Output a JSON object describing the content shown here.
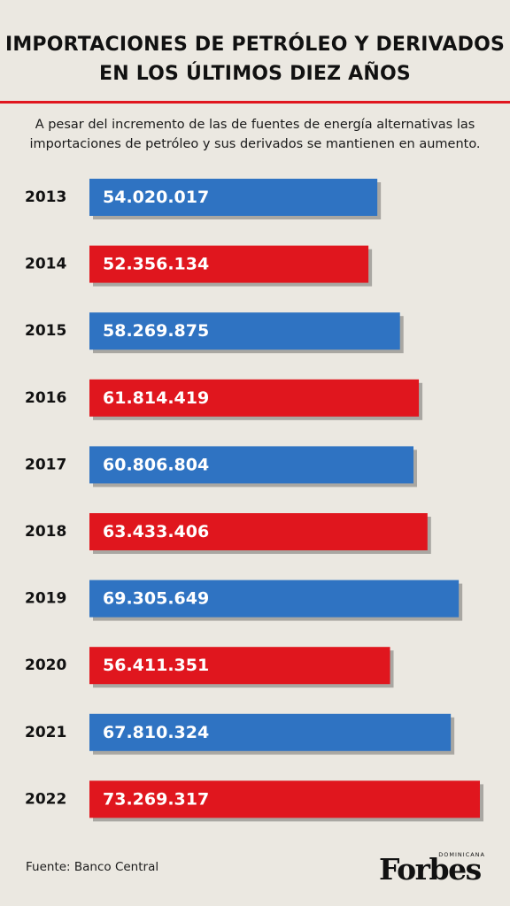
{
  "title": "IMPORTACIONES DE PETRÓLEO Y DERIVADOS EN LOS ÚLTIMOS DIEZ AÑOS",
  "subtitle": "A pesar del incremento de las de fuentes de energía alternativas  las importaciones de petróleo y sus derivados se mantienen en aumento.",
  "source": "Fuente: Banco Central",
  "logo": {
    "word": "Forbes",
    "sub": "DOMINICANA"
  },
  "colors": {
    "background": "#ebe8e1",
    "blue": "#2f73c2",
    "red": "#e0161e",
    "title_rule": "#e0161e"
  },
  "chart_data": {
    "type": "bar",
    "orientation": "horizontal",
    "categories": [
      "2013",
      "2014",
      "2015",
      "2016",
      "2017",
      "2018",
      "2019",
      "2020",
      "2021",
      "2022"
    ],
    "values": [
      54020017,
      52356134,
      58269875,
      61814419,
      60806804,
      63433406,
      69305649,
      56411351,
      67810324,
      73269317
    ],
    "value_labels": [
      "54.020.017",
      "52.356.134",
      "58.269.875",
      "61.814.419",
      "60.806.804",
      "63.433.406",
      "69.305.649",
      "56.411.351",
      "67.810.324",
      "73.269.317"
    ],
    "bar_colors": [
      "#2f73c2",
      "#e0161e",
      "#2f73c2",
      "#e0161e",
      "#2f73c2",
      "#e0161e",
      "#2f73c2",
      "#e0161e",
      "#2f73c2",
      "#e0161e"
    ],
    "title": "IMPORTACIONES DE PETRÓLEO Y DERIVADOS EN LOS ÚLTIMOS DIEZ AÑOS",
    "xlabel": "",
    "ylabel": "",
    "grid": false,
    "legend": false
  }
}
